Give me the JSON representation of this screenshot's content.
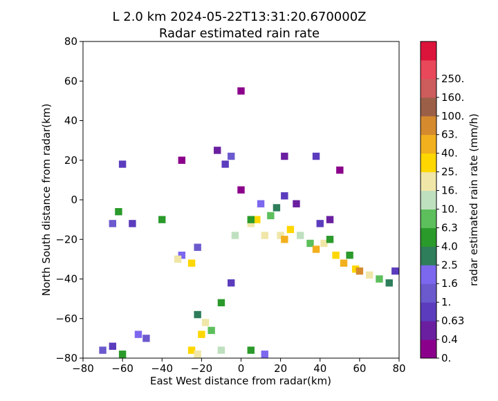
{
  "chart_data": {
    "type": "heatmap",
    "title_line1": "L 2.0 km 2024-05-22T13:31:20.670000Z",
    "title_line2": "Radar estimated rain rate",
    "xlabel": "East West distance from radar(km)",
    "ylabel": "North South distance from radar(km)",
    "xlim": [
      -80,
      80
    ],
    "ylim": [
      -80,
      80
    ],
    "xticks": [
      -80,
      -60,
      -40,
      -20,
      0,
      20,
      40,
      60,
      80
    ],
    "yticks": [
      -80,
      -60,
      -40,
      -20,
      0,
      20,
      40,
      60,
      80
    ],
    "grid": false,
    "colorbar": {
      "label": "radar estimated rain rate (mm/h)",
      "levels": [
        "0.",
        "0.4",
        "0.63",
        "1.",
        "1.6",
        "2.5",
        "4.0",
        "6.3",
        "10.",
        "16.",
        "25.",
        "40.",
        "63.",
        "100.",
        "160.",
        "250."
      ],
      "colors": [
        "#8b008b",
        "#6a1fa0",
        "#5b3cbd",
        "#6a5acd",
        "#7b68ee",
        "#2e7d5b",
        "#2a9a2a",
        "#5cbf5c",
        "#bfe0bf",
        "#f0e6a8",
        "#ffd700",
        "#f2b01e",
        "#d58a2e",
        "#9b5f48",
        "#cd5c5c",
        "#e8485a",
        "#dc143c"
      ]
    },
    "cells": [
      {
        "x": -5,
        "y": 22,
        "level": 3
      },
      {
        "x": -8,
        "y": 18,
        "level": 2
      },
      {
        "x": -12,
        "y": 25,
        "level": 1
      },
      {
        "x": 22,
        "y": 22,
        "level": 1
      },
      {
        "x": 38,
        "y": 22,
        "level": 2
      },
      {
        "x": 50,
        "y": 15,
        "level": 0
      },
      {
        "x": -60,
        "y": 18,
        "level": 2
      },
      {
        "x": -65,
        "y": -12,
        "level": 3
      },
      {
        "x": -55,
        "y": -12,
        "level": 2
      },
      {
        "x": -62,
        "y": -6,
        "level": 6
      },
      {
        "x": -30,
        "y": -28,
        "level": 4
      },
      {
        "x": -32,
        "y": -30,
        "level": 9
      },
      {
        "x": -25,
        "y": -32,
        "level": 10
      },
      {
        "x": -22,
        "y": -24,
        "level": 3
      },
      {
        "x": 5,
        "y": -12,
        "level": 9
      },
      {
        "x": 8,
        "y": -10,
        "level": 10
      },
      {
        "x": 15,
        "y": -8,
        "level": 7
      },
      {
        "x": 18,
        "y": -4,
        "level": 5
      },
      {
        "x": 22,
        "y": 2,
        "level": 2
      },
      {
        "x": 28,
        "y": -2,
        "level": 1
      },
      {
        "x": 20,
        "y": -18,
        "level": 9
      },
      {
        "x": 22,
        "y": -20,
        "level": 11
      },
      {
        "x": 25,
        "y": -15,
        "level": 10
      },
      {
        "x": 30,
        "y": -18,
        "level": 8
      },
      {
        "x": 35,
        "y": -22,
        "level": 7
      },
      {
        "x": 38,
        "y": -25,
        "level": 11
      },
      {
        "x": 42,
        "y": -22,
        "level": 9
      },
      {
        "x": 45,
        "y": -20,
        "level": 6
      },
      {
        "x": 48,
        "y": -28,
        "level": 10
      },
      {
        "x": 52,
        "y": -32,
        "level": 11
      },
      {
        "x": 58,
        "y": -35,
        "level": 10
      },
      {
        "x": 60,
        "y": -36,
        "level": 12
      },
      {
        "x": 65,
        "y": -38,
        "level": 9
      },
      {
        "x": 70,
        "y": -40,
        "level": 7
      },
      {
        "x": 75,
        "y": -42,
        "level": 5
      },
      {
        "x": 78,
        "y": -36,
        "level": 2
      },
      {
        "x": 55,
        "y": -28,
        "level": 6
      },
      {
        "x": 40,
        "y": -12,
        "level": 2
      },
      {
        "x": 45,
        "y": -10,
        "level": 1
      },
      {
        "x": -22,
        "y": -58,
        "level": 5
      },
      {
        "x": -18,
        "y": -62,
        "level": 9
      },
      {
        "x": -20,
        "y": -68,
        "level": 10
      },
      {
        "x": -15,
        "y": -66,
        "level": 7
      },
      {
        "x": -10,
        "y": -52,
        "level": 6
      },
      {
        "x": -25,
        "y": -76,
        "level": 10
      },
      {
        "x": -22,
        "y": -78,
        "level": 9
      },
      {
        "x": -10,
        "y": -76,
        "level": 8
      },
      {
        "x": 5,
        "y": -76,
        "level": 6
      },
      {
        "x": 12,
        "y": -78,
        "level": 4
      },
      {
        "x": -48,
        "y": -70,
        "level": 3
      },
      {
        "x": -52,
        "y": -68,
        "level": 4
      },
      {
        "x": -65,
        "y": -74,
        "level": 2
      },
      {
        "x": -70,
        "y": -76,
        "level": 3
      },
      {
        "x": -60,
        "y": -78,
        "level": 6
      },
      {
        "x": -5,
        "y": -42,
        "level": 2
      },
      {
        "x": 0,
        "y": 55,
        "level": 0
      },
      {
        "x": -30,
        "y": 20,
        "level": 0
      },
      {
        "x": 5,
        "y": -10,
        "level": 6
      },
      {
        "x": -3,
        "y": -18,
        "level": 8
      },
      {
        "x": 12,
        "y": -18,
        "level": 9
      },
      {
        "x": 0,
        "y": 5,
        "level": 0
      },
      {
        "x": -40,
        "y": -10,
        "level": 6
      },
      {
        "x": 10,
        "y": -2,
        "level": 4
      }
    ]
  }
}
